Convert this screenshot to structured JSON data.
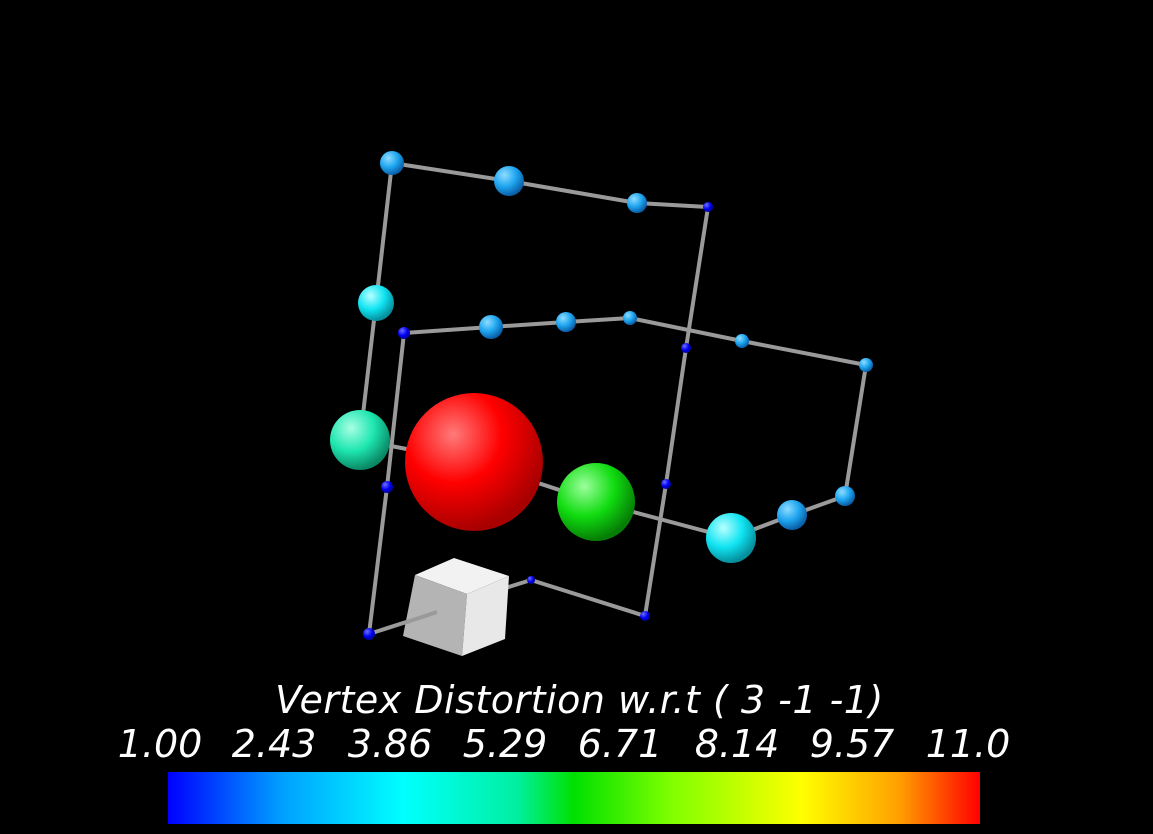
{
  "legend": {
    "title": "Vertex Distortion w.r.t ( 3 -1 -1)",
    "ticks": [
      "1.00",
      "2.43",
      "3.86",
      "5.29",
      "6.71",
      "8.14",
      "9.57",
      "11.0"
    ],
    "colormap": [
      "#0000ff",
      "#00ffff",
      "#00e000",
      "#ffff00",
      "#ff0000"
    ]
  },
  "colors": {
    "background": "#000000",
    "edge": "#9a9a9a",
    "reference_cube": "#e6e6e6"
  },
  "vertices": [
    {
      "id": "v-top-left",
      "color": "#2aa8f0",
      "size": "small"
    },
    {
      "id": "v-top-mid",
      "color": "#22b4f2",
      "size": "small"
    },
    {
      "id": "v-top-right-a",
      "color": "#1a90ee",
      "size": "small"
    },
    {
      "id": "v-top-corner",
      "color": "#0000ff",
      "size": "tiny"
    },
    {
      "id": "v-left-upper",
      "color": "#22d0f5",
      "size": "medium"
    },
    {
      "id": "v-left-teal",
      "color": "#20e6b0",
      "size": "large"
    },
    {
      "id": "v-max-red",
      "color": "#ff0000",
      "size": "huge"
    },
    {
      "id": "v-green",
      "color": "#10e010",
      "size": "large"
    },
    {
      "id": "v-cyan-bottom",
      "color": "#10e8f0",
      "size": "medium"
    },
    {
      "id": "v-cyan-right",
      "color": "#22b8f4",
      "size": "small"
    },
    {
      "id": "v-right-end",
      "color": "#1a98f0",
      "size": "small"
    }
  ]
}
